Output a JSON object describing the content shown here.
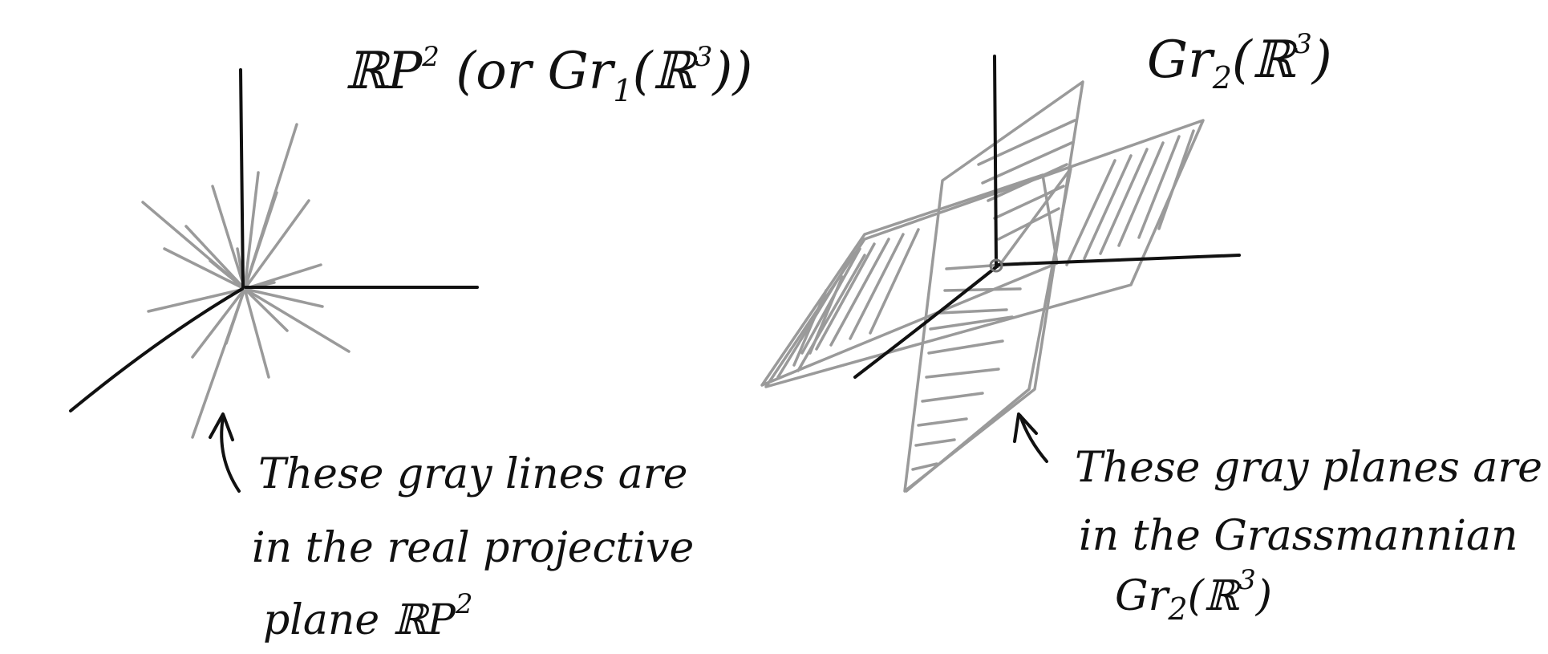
{
  "left": {
    "title": {
      "main": "ℝP",
      "sup": "2",
      "paren_open": " (or Gr",
      "sub": "1",
      "inner": "(ℝ",
      "inner_sup": "3",
      "close": "))"
    },
    "caption_lines": [
      "These gray lines are",
      "in the real projective",
      "plane ℝP"
    ],
    "caption_sup": "2",
    "colors": {
      "axis": "#111111",
      "lines": "#9a9a9a"
    }
  },
  "right": {
    "title": {
      "main": "Gr",
      "sub": "2",
      "inner": "(ℝ",
      "inner_sup": "3",
      "close": ")"
    },
    "caption_lines": [
      "These gray planes are",
      "in the Grassmannian"
    ],
    "caption_formula": {
      "main": "Gr",
      "sub": "2",
      "inner": "(ℝ",
      "inner_sup": "3",
      "close": ")"
    },
    "colors": {
      "axis": "#111111",
      "planes": "#9a9a9a"
    }
  }
}
